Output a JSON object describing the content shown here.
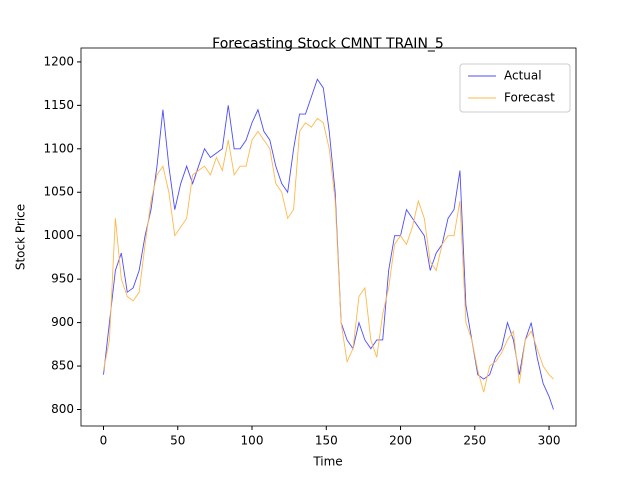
{
  "chart_data": {
    "type": "line",
    "title": "Forecasting Stock CMNT TRAIN_5",
    "x_label": "Time",
    "y_label": "Stock Price",
    "x": [
      0,
      4,
      8,
      12,
      16,
      20,
      24,
      28,
      32,
      36,
      40,
      44,
      48,
      52,
      56,
      60,
      64,
      68,
      72,
      76,
      80,
      84,
      88,
      92,
      96,
      100,
      104,
      108,
      112,
      116,
      120,
      124,
      128,
      132,
      136,
      140,
      144,
      148,
      152,
      156,
      160,
      164,
      168,
      172,
      176,
      180,
      184,
      188,
      192,
      196,
      200,
      204,
      208,
      212,
      216,
      220,
      224,
      228,
      232,
      236,
      240,
      244,
      248,
      252,
      256,
      260,
      264,
      268,
      272,
      276,
      280,
      284,
      288,
      292,
      296,
      300,
      303
    ],
    "series": [
      {
        "name": "Actual",
        "color": "#4d4dff",
        "values": [
          840,
          900,
          960,
          980,
          935,
          940,
          960,
          1000,
          1030,
          1080,
          1145,
          1080,
          1030,
          1060,
          1080,
          1060,
          1080,
          1100,
          1090,
          1095,
          1100,
          1150,
          1100,
          1100,
          1110,
          1130,
          1145,
          1120,
          1110,
          1080,
          1060,
          1050,
          1100,
          1140,
          1140,
          1160,
          1180,
          1170,
          1120,
          1050,
          900,
          880,
          870,
          900,
          880,
          870,
          880,
          880,
          960,
          1000,
          1000,
          1030,
          1020,
          1010,
          1000,
          960,
          980,
          990,
          1020,
          1030,
          1075,
          920,
          880,
          840,
          835,
          840,
          860,
          870,
          900,
          880,
          840,
          880,
          900,
          860,
          830,
          815,
          800
        ]
      },
      {
        "name": "Forecast",
        "color": "#ffb84d",
        "values": [
          845,
          880,
          1020,
          950,
          930,
          925,
          935,
          990,
          1040,
          1070,
          1080,
          1050,
          1000,
          1010,
          1020,
          1070,
          1075,
          1080,
          1070,
          1090,
          1075,
          1110,
          1070,
          1080,
          1080,
          1110,
          1120,
          1110,
          1100,
          1060,
          1050,
          1020,
          1030,
          1120,
          1130,
          1125,
          1135,
          1130,
          1100,
          1040,
          900,
          855,
          870,
          930,
          940,
          880,
          860,
          910,
          940,
          990,
          1000,
          990,
          1010,
          1040,
          1020,
          970,
          960,
          990,
          1000,
          1000,
          1040,
          900,
          880,
          845,
          820,
          850,
          855,
          865,
          880,
          890,
          830,
          880,
          890,
          870,
          850,
          840,
          835
        ]
      }
    ],
    "xlim": [
      -15.15,
      318.15
    ],
    "ylim": [
      781,
      1216
    ],
    "xticks": [
      0,
      50,
      100,
      150,
      200,
      250,
      300
    ],
    "yticks": [
      800,
      850,
      900,
      950,
      1000,
      1050,
      1100,
      1150,
      1200
    ],
    "legend": "upper right"
  }
}
